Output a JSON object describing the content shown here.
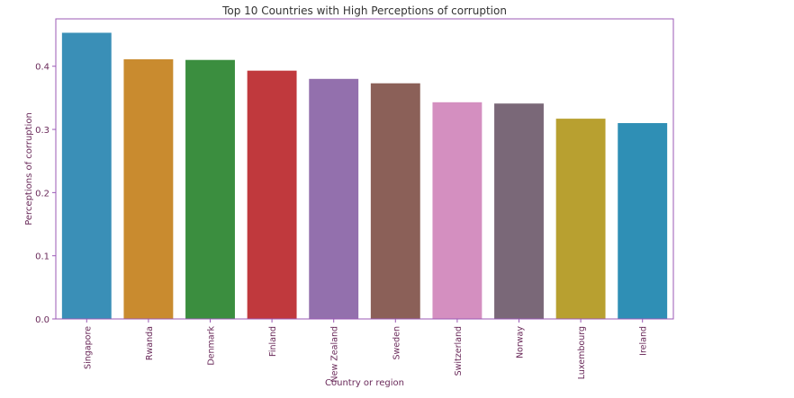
{
  "chart_data": {
    "type": "bar",
    "title": "Top 10 Countries with High Perceptions of corruption",
    "xlabel": "Country or region",
    "ylabel": "Perceptions of corruption",
    "categories": [
      "Singapore",
      "Rwanda",
      "Denmark",
      "Finland",
      "New Zealand",
      "Sweden",
      "Switzerland",
      "Norway",
      "Luxembourg",
      "Ireland"
    ],
    "values": [
      0.453,
      0.411,
      0.41,
      0.393,
      0.38,
      0.373,
      0.343,
      0.341,
      0.317,
      0.31
    ],
    "ylim": [
      0,
      0.475
    ],
    "yticks": [
      0.0,
      0.1,
      0.2,
      0.3,
      0.4
    ],
    "ytick_labels": [
      "0.0",
      "0.1",
      "0.2",
      "0.3",
      "0.4"
    ],
    "grid": false,
    "colors": [
      "#3a8fb7",
      "#c98b2f",
      "#3b8e3f",
      "#c0393d",
      "#9370ad",
      "#8b6058",
      "#d48fc0",
      "#7a6878",
      "#b8a030",
      "#2f8fb5"
    ],
    "text_color": "#6a2a5a",
    "axis_color": "#9b59b6"
  }
}
